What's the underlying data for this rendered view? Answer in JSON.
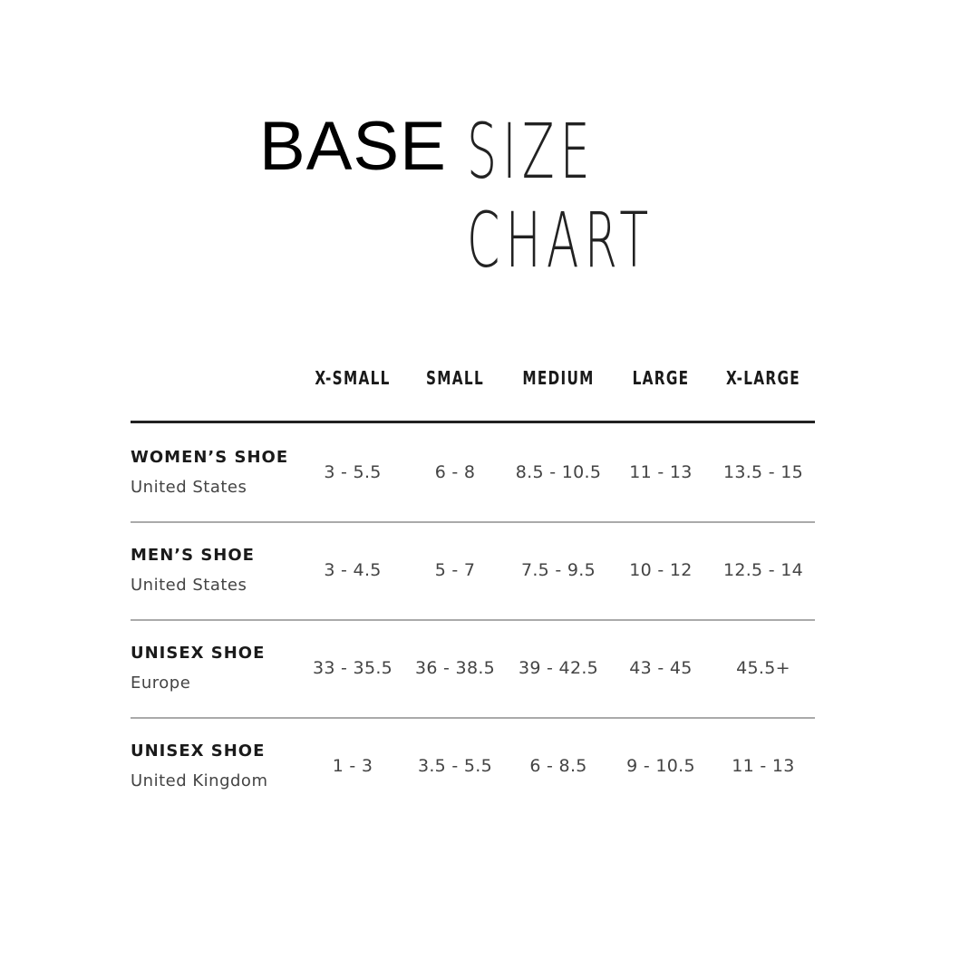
{
  "title": {
    "brand": "BASE",
    "rest": "SIZE CHART"
  },
  "columns": [
    "X-SMALL",
    "SMALL",
    "MEDIUM",
    "LARGE",
    "X-LARGE"
  ],
  "rows": [
    {
      "label": "WOMEN’S SHOE",
      "region": "United States",
      "values": [
        "3 - 5.5",
        "6 - 8",
        "8.5 - 10.5",
        "11 - 13",
        "13.5 - 15"
      ]
    },
    {
      "label": "MEN’S SHOE",
      "region": "United States",
      "values": [
        "3 - 4.5",
        "5 - 7",
        "7.5 - 9.5",
        "10 - 12",
        "12.5 - 14"
      ]
    },
    {
      "label": "UNISEX SHOE",
      "region": "Europe",
      "values": [
        "33 - 35.5",
        "36 - 38.5",
        "39 - 42.5",
        "43 - 45",
        "45.5+"
      ]
    },
    {
      "label": "UNISEX SHOE",
      "region": "United Kingdom",
      "values": [
        "1 - 3",
        "3.5 - 5.5",
        "6 - 8.5",
        "9 - 10.5",
        "11 - 13"
      ]
    }
  ]
}
